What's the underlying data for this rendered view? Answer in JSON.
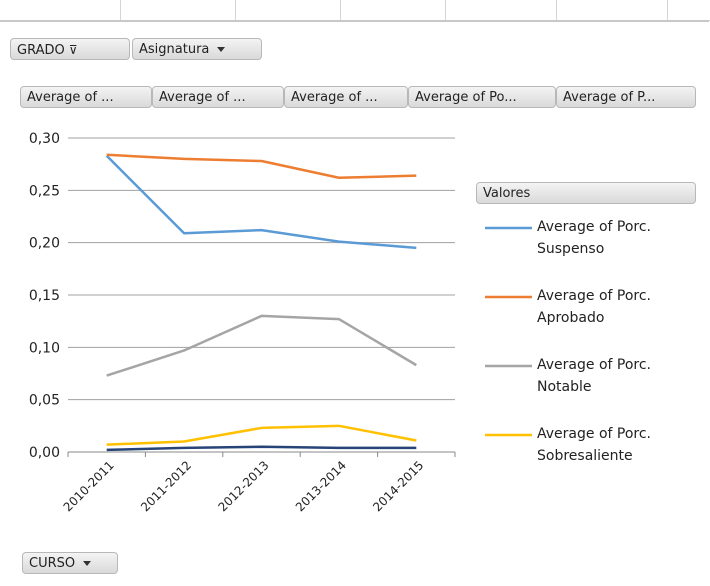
{
  "report_filters": [
    "GRADO",
    "Asignatura"
  ],
  "value_fields": [
    "Average of ...",
    "Average of ...",
    "Average of ...",
    "Average of Po...",
    "Average of P..."
  ],
  "axis_field": "CURSO",
  "chart_data": {
    "type": "line",
    "categories": [
      "2010-2011",
      "2011-2012",
      "2012-2013",
      "2013-2014",
      "2014-2015"
    ],
    "legend_title": "Valores",
    "series": [
      {
        "name": "Average of Porc. Suspenso",
        "color": "#5b9bd5",
        "values": [
          0.283,
          0.209,
          0.212,
          0.201,
          0.195
        ]
      },
      {
        "name": "Average of Porc. Aprobado",
        "color": "#ed7d31",
        "values": [
          0.284,
          0.28,
          0.278,
          0.262,
          0.264
        ]
      },
      {
        "name": "Average of Porc. Notable",
        "color": "#a5a5a5",
        "values": [
          0.073,
          0.097,
          0.13,
          0.127,
          0.083
        ]
      },
      {
        "name": "Average of Porc. Sobresaliente",
        "color": "#ffc000",
        "values": [
          0.007,
          0.01,
          0.023,
          0.025,
          0.011
        ]
      },
      {
        "color": "#264478",
        "values": [
          0.002,
          0.004,
          0.005,
          0.004,
          0.004
        ]
      }
    ],
    "ylim": [
      0,
      0.3
    ],
    "yticks": [
      {
        "value": 0,
        "label": "0,00"
      },
      {
        "value": 0.05,
        "label": "0,05"
      },
      {
        "value": 0.1,
        "label": "0,10"
      },
      {
        "value": 0.15,
        "label": "0,15"
      },
      {
        "value": 0.2,
        "label": "0,20"
      },
      {
        "value": 0.25,
        "label": "0,25"
      },
      {
        "value": 0.3,
        "label": "0,30"
      }
    ],
    "grid": true
  }
}
